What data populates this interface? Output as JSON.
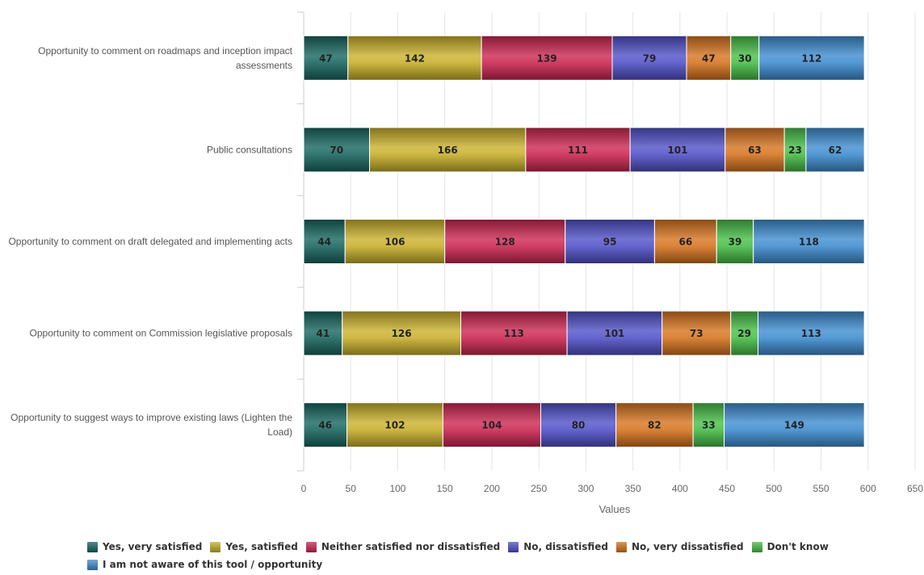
{
  "chart_data": {
    "type": "bar",
    "orientation": "horizontal",
    "stacked": true,
    "categories": [
      "Opportunity to comment on roadmaps and inception impact assessments",
      "Public consultations",
      "Opportunity to comment on draft delegated and implementing acts",
      "Opportunity to comment on Commission legislative proposals",
      "Opportunity to suggest ways to improve existing laws (Lighten the Load)"
    ],
    "series": [
      {
        "name": "Yes, very satisfied",
        "color": "#17655f",
        "values": [
          47,
          70,
          44,
          41,
          46
        ]
      },
      {
        "name": "Yes, satisfied",
        "color": "#c9b02a",
        "values": [
          142,
          166,
          106,
          126,
          102
        ]
      },
      {
        "name": "Neither satisfied nor dissatisfied",
        "color": "#cc2550",
        "values": [
          139,
          111,
          128,
          113,
          104
        ]
      },
      {
        "name": "No, dissatisfied",
        "color": "#5050c8",
        "values": [
          79,
          101,
          95,
          101,
          80
        ]
      },
      {
        "name": "No, very dissatisfied",
        "color": "#d6731e",
        "values": [
          47,
          63,
          66,
          73,
          82
        ]
      },
      {
        "name": "Don't know",
        "color": "#46be46",
        "values": [
          30,
          23,
          39,
          29,
          33
        ]
      },
      {
        "name": "I am not aware of this tool / opportunity",
        "color": "#3d8cd0",
        "values": [
          112,
          62,
          118,
          113,
          149
        ]
      }
    ],
    "xlabel": "Values",
    "xlim": [
      0,
      650
    ],
    "xticks": [
      0,
      50,
      100,
      150,
      200,
      250,
      300,
      350,
      400,
      450,
      500,
      550,
      600,
      650
    ],
    "grid": true,
    "legend_position": "bottom",
    "data_labels": true
  }
}
